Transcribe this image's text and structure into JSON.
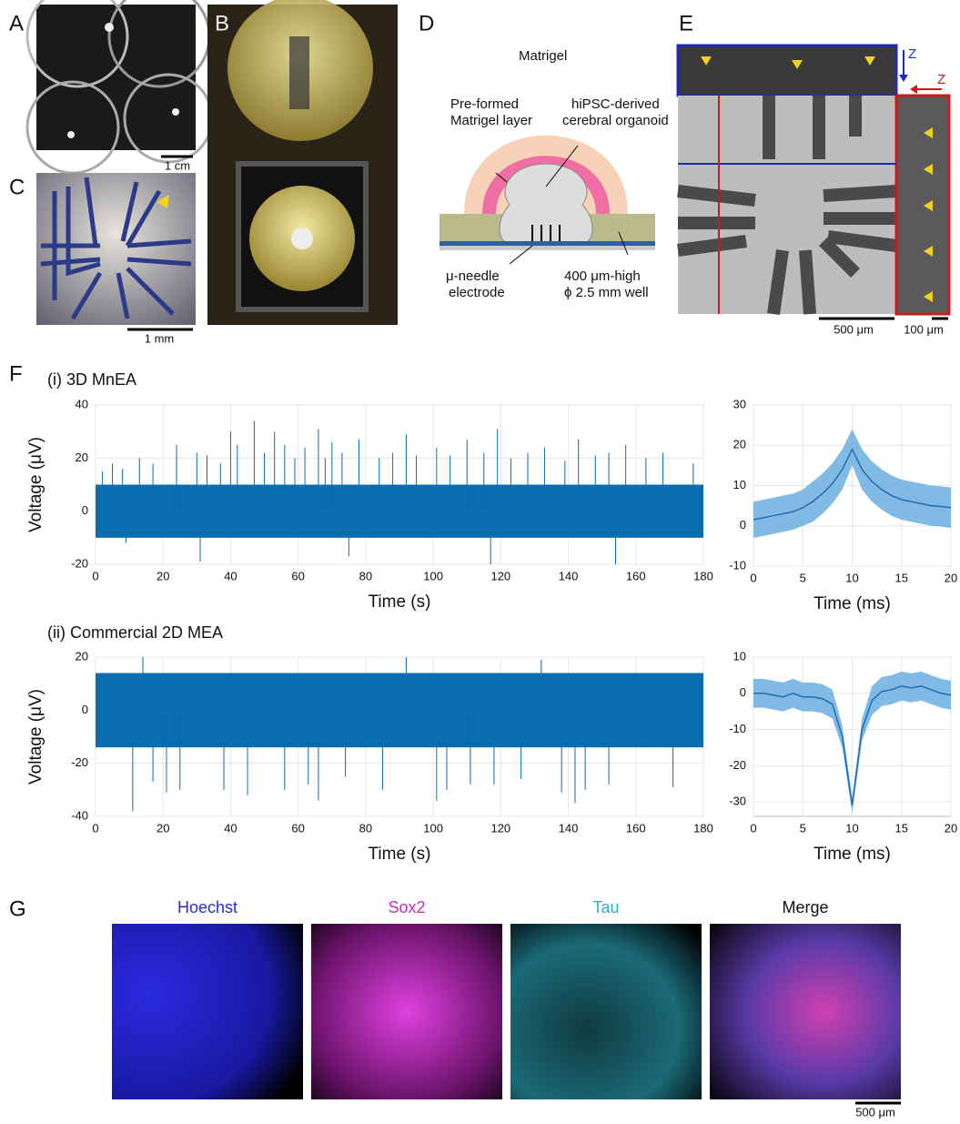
{
  "panel_labels": [
    "A",
    "B",
    "C",
    "D",
    "E",
    "F",
    "G"
  ],
  "panel_a": {
    "scale_bar": "1 cm"
  },
  "panel_c": {
    "scale_bar": "1 mm"
  },
  "panel_d": {
    "labels": [
      "Matrigel",
      "Pre-formed",
      "Matrigel layer",
      "hiPSC-derived",
      "cerebral organoid",
      "μ-needle",
      "electrode",
      "400 μm-high",
      "ϕ 2.5 mm well"
    ]
  },
  "panel_e": {
    "axis_labels": [
      "Z",
      "Z"
    ],
    "scale_bars": [
      "500 μm",
      "100 μm"
    ]
  },
  "panel_f": {
    "subtitles": [
      "(i) 3D MnEA",
      "(ii) Commercial 2D MEA"
    ]
  },
  "panel_g": {
    "channels": [
      "Hoechst",
      "Sox2",
      "Tau",
      "Merge"
    ],
    "channel_colors": [
      "#2b2bd6",
      "#c02cc0",
      "#2ab0c8",
      "#111111"
    ],
    "scale_bar": "500 μm"
  },
  "chart_data": [
    {
      "type": "trace",
      "ylabel": "Voltage (μV)",
      "xlabel": "Time (s)",
      "xlim": [
        0,
        180
      ],
      "xticks": [
        0,
        20,
        40,
        60,
        80,
        100,
        120,
        140,
        160,
        180
      ],
      "ylim": [
        -20,
        40
      ],
      "yticks": [
        -20,
        0,
        20,
        40
      ],
      "grid": true,
      "color": "#0b6db0",
      "band": [
        -10,
        10
      ],
      "x": [
        2,
        5,
        8,
        13,
        17,
        24,
        30,
        33,
        37,
        40,
        42,
        47,
        50,
        53,
        56,
        59,
        62,
        66,
        68,
        70,
        73,
        78,
        84,
        88,
        92,
        95,
        101,
        105,
        110,
        115,
        119,
        123,
        128,
        133,
        139,
        143,
        148,
        152,
        157,
        163,
        168,
        177,
        9,
        31,
        75,
        117,
        154
      ],
      "values": [
        15,
        18,
        16,
        20,
        18,
        25,
        22,
        21,
        18,
        30,
        25,
        34,
        22,
        30,
        25,
        20,
        24,
        31,
        20,
        26,
        22,
        27,
        20,
        22,
        29,
        21,
        24,
        21,
        27,
        22,
        31,
        20,
        22,
        24,
        19,
        27,
        21,
        22,
        25,
        20,
        22,
        18,
        -12,
        -19,
        -17,
        -20,
        -20
      ]
    },
    {
      "type": "line",
      "xlabel": "Time (ms)",
      "xlim": [
        0,
        20
      ],
      "xticks": [
        0,
        5,
        10,
        15,
        20
      ],
      "ylim": [
        -10,
        30
      ],
      "yticks": [
        -10,
        0,
        10,
        20,
        30
      ],
      "grid": true,
      "color": "#1f6fb0",
      "band_color": "#6aaee0",
      "x": [
        0,
        1,
        2,
        3,
        4,
        5,
        6,
        7,
        8,
        9,
        10,
        11,
        12,
        13,
        14,
        15,
        16,
        17,
        18,
        19,
        20
      ],
      "values": [
        1.5,
        2,
        2.5,
        3,
        3.5,
        4.5,
        6,
        8,
        10.5,
        14,
        19,
        14,
        11,
        9,
        7.5,
        6.5,
        6,
        5.5,
        5,
        4.8,
        4.5
      ],
      "lower": [
        -3,
        -2.5,
        -2,
        -1.5,
        -1,
        0,
        1,
        3,
        5.5,
        9,
        15,
        9,
        6,
        4,
        2.5,
        1.5,
        1,
        0.5,
        0,
        -0.2,
        -0.5
      ],
      "upper": [
        6,
        6.5,
        7,
        7.5,
        8,
        9,
        11,
        13,
        15.5,
        19,
        24,
        19,
        16,
        14,
        12.5,
        11.5,
        11,
        10.5,
        10,
        9.8,
        9.5
      ]
    },
    {
      "type": "trace",
      "ylabel": "Voltage (μV)",
      "xlabel": "Time (s)",
      "xlim": [
        0,
        180
      ],
      "xticks": [
        0,
        20,
        40,
        60,
        80,
        100,
        120,
        140,
        160,
        180
      ],
      "ylim": [
        -40,
        20
      ],
      "yticks": [
        -40,
        -20,
        0,
        20
      ],
      "grid": true,
      "color": "#0b6db0",
      "band": [
        -14,
        14
      ],
      "x": [
        11,
        17,
        21,
        25,
        38,
        45,
        56,
        63,
        66,
        74,
        85,
        101,
        104,
        111,
        118,
        126,
        138,
        142,
        145,
        152,
        171,
        14,
        92,
        132
      ],
      "values": [
        -38,
        -27,
        -31,
        -30,
        -30,
        -32,
        -30,
        -28,
        -34,
        -25,
        -30,
        -34,
        -30,
        -28,
        -28,
        -26,
        -31,
        -35,
        -30,
        -28,
        -29,
        20,
        20,
        19
      ]
    },
    {
      "type": "line",
      "xlabel": "Time (ms)",
      "xlim": [
        0,
        20
      ],
      "xticks": [
        0,
        5,
        10,
        15,
        20
      ],
      "ylim": [
        -34,
        10
      ],
      "yticks": [
        -30,
        -20,
        -10,
        0,
        10
      ],
      "grid": true,
      "color": "#1f6fb0",
      "band_color": "#6aaee0",
      "x": [
        0,
        1,
        2,
        3,
        4,
        5,
        6,
        7,
        8,
        9,
        10,
        11,
        12,
        13,
        14,
        15,
        16,
        17,
        18,
        19,
        20
      ],
      "values": [
        0,
        0,
        -0.5,
        -1,
        0,
        -1,
        -1,
        -1.5,
        -3,
        -12,
        -31,
        -10,
        -2,
        0.5,
        1,
        2,
        1.5,
        2,
        1,
        0,
        -0.5
      ],
      "lower": [
        -4,
        -4,
        -4.5,
        -5,
        -4,
        -5,
        -5,
        -5.5,
        -7,
        -15,
        -33,
        -13,
        -6,
        -3.5,
        -3,
        -2,
        -2.5,
        -2,
        -3,
        -4,
        -4.5
      ],
      "upper": [
        4,
        4,
        3.5,
        3,
        4,
        3,
        3,
        2.5,
        1,
        -9,
        -29,
        -7,
        2,
        4.5,
        5,
        6,
        5.5,
        6,
        5,
        4,
        3.5
      ]
    }
  ]
}
